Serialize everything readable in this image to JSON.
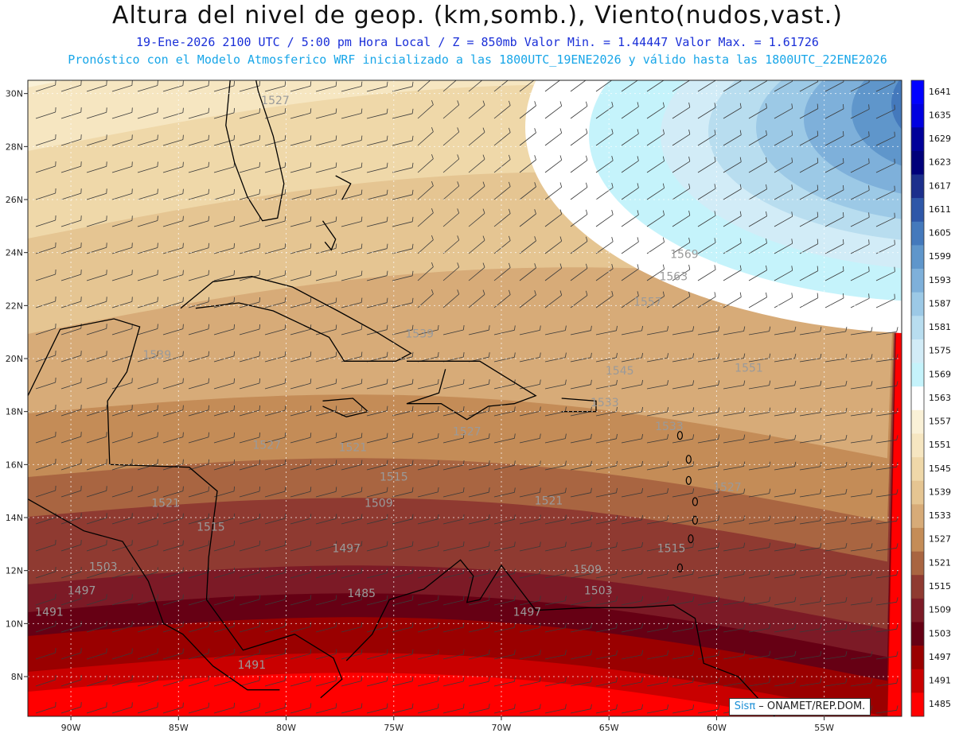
{
  "header": {
    "title": "Altura del nivel de geop. (km,somb.), Viento(nudos,vast.)",
    "subtitle": "19-Ene-2026  2100 UTC / 5:00 pm Hora Local / Z = 850mb     Valor Min. = 1.44447  Valor Max. = 1.61726",
    "info": "Pronóstico con el Modelo Atmosferico WRF inicializado a las 1800UTC_19ENE2026 y válido hasta las  1800UTC_22ENE2026"
  },
  "map": {
    "lon_range": [
      -92.0,
      -51.4
    ],
    "lat_range": [
      6.5,
      30.5
    ],
    "x_ticks": [
      {
        "value": -90,
        "label": "90W"
      },
      {
        "value": -85,
        "label": "85W"
      },
      {
        "value": -80,
        "label": "80W"
      },
      {
        "value": -75,
        "label": "75W"
      },
      {
        "value": -70,
        "label": "70W"
      },
      {
        "value": -65,
        "label": "65W"
      },
      {
        "value": -60,
        "label": "60W"
      },
      {
        "value": -55,
        "label": "55W"
      }
    ],
    "y_ticks": [
      {
        "value": 30,
        "label": "30N"
      },
      {
        "value": 28,
        "label": "28N"
      },
      {
        "value": 26,
        "label": "26N"
      },
      {
        "value": 24,
        "label": "24N"
      },
      {
        "value": 22,
        "label": "22N"
      },
      {
        "value": 20,
        "label": "20N"
      },
      {
        "value": 18,
        "label": "18N"
      },
      {
        "value": 16,
        "label": "16N"
      },
      {
        "value": 14,
        "label": "14N"
      },
      {
        "value": 12,
        "label": "12N"
      },
      {
        "value": 10,
        "label": "10N"
      },
      {
        "value": 8,
        "label": "8N"
      }
    ],
    "contour_labels": [
      {
        "text": "1527",
        "lon": -80.5,
        "lat": 29.6
      },
      {
        "text": "1539",
        "lon": -86.0,
        "lat": 20.0
      },
      {
        "text": "1539",
        "lon": -73.8,
        "lat": 20.8
      },
      {
        "text": "1545",
        "lon": -64.5,
        "lat": 19.4
      },
      {
        "text": "1551",
        "lon": -58.5,
        "lat": 19.5
      },
      {
        "text": "1557",
        "lon": -63.2,
        "lat": 22.0
      },
      {
        "text": "1563",
        "lon": -62.0,
        "lat": 22.95
      },
      {
        "text": "1569",
        "lon": -61.5,
        "lat": 23.8
      },
      {
        "text": "1533",
        "lon": -65.2,
        "lat": 18.2
      },
      {
        "text": "1533",
        "lon": -62.2,
        "lat": 17.3
      },
      {
        "text": "1527",
        "lon": -71.6,
        "lat": 17.1
      },
      {
        "text": "1527",
        "lon": -80.9,
        "lat": 16.6
      },
      {
        "text": "1527",
        "lon": -59.5,
        "lat": 15.0
      },
      {
        "text": "1521",
        "lon": -76.9,
        "lat": 16.5
      },
      {
        "text": "1521",
        "lon": -85.6,
        "lat": 14.4
      },
      {
        "text": "1521",
        "lon": -67.8,
        "lat": 14.5
      },
      {
        "text": "1515",
        "lon": -75.0,
        "lat": 15.4
      },
      {
        "text": "1515",
        "lon": -83.5,
        "lat": 13.5
      },
      {
        "text": "1515",
        "lon": -62.1,
        "lat": 12.7
      },
      {
        "text": "1509",
        "lon": -75.7,
        "lat": 14.4
      },
      {
        "text": "1509",
        "lon": -66.0,
        "lat": 11.9
      },
      {
        "text": "1503",
        "lon": -88.5,
        "lat": 12.0
      },
      {
        "text": "1503",
        "lon": -65.5,
        "lat": 11.1
      },
      {
        "text": "1497",
        "lon": -77.2,
        "lat": 12.7
      },
      {
        "text": "1497",
        "lon": -89.5,
        "lat": 11.1
      },
      {
        "text": "1497",
        "lon": -68.8,
        "lat": 10.3
      },
      {
        "text": "1491",
        "lon": -91.0,
        "lat": 10.3
      },
      {
        "text": "1491",
        "lon": -81.6,
        "lat": 8.3
      },
      {
        "text": "1485",
        "lon": -76.5,
        "lat": 11.0
      }
    ]
  },
  "legend": {
    "levels": [
      {
        "label": "1641",
        "color": "#0000ff"
      },
      {
        "label": "1635",
        "color": "#0000e0"
      },
      {
        "label": "1629",
        "color": "#000099"
      },
      {
        "label": "1623",
        "color": "#00007a"
      },
      {
        "label": "1617",
        "color": "#1c2f8c"
      },
      {
        "label": "1611",
        "color": "#2e57a8"
      },
      {
        "label": "1605",
        "color": "#4479bc"
      },
      {
        "label": "1599",
        "color": "#5f96cb"
      },
      {
        "label": "1593",
        "color": "#7eb0da"
      },
      {
        "label": "1587",
        "color": "#9cc9e6"
      },
      {
        "label": "1581",
        "color": "#b8ddef"
      },
      {
        "label": "1575",
        "color": "#d2ecf7"
      },
      {
        "label": "1569",
        "color": "#c5f3fb"
      },
      {
        "label": "1563",
        "color": "#ffffff"
      },
      {
        "label": "1557",
        "color": "#faf1d7"
      },
      {
        "label": "1551",
        "color": "#f6e6c1"
      },
      {
        "label": "1545",
        "color": "#efd8a9"
      },
      {
        "label": "1539",
        "color": "#e5c592"
      },
      {
        "label": "1533",
        "color": "#d7ab78"
      },
      {
        "label": "1527",
        "color": "#c48c57"
      },
      {
        "label": "1521",
        "color": "#a96541"
      },
      {
        "label": "1515",
        "color": "#8f3a31"
      },
      {
        "label": "1509",
        "color": "#7c1a26"
      },
      {
        "label": "1503",
        "color": "#660014"
      },
      {
        "label": "1497",
        "color": "#9a0000"
      },
      {
        "label": "1491",
        "color": "#c90000"
      },
      {
        "label": "1485",
        "color": "#ff0000"
      }
    ]
  },
  "credit": {
    "brand": "Sisπ",
    "text": "ONAMET/REP.DOM."
  }
}
